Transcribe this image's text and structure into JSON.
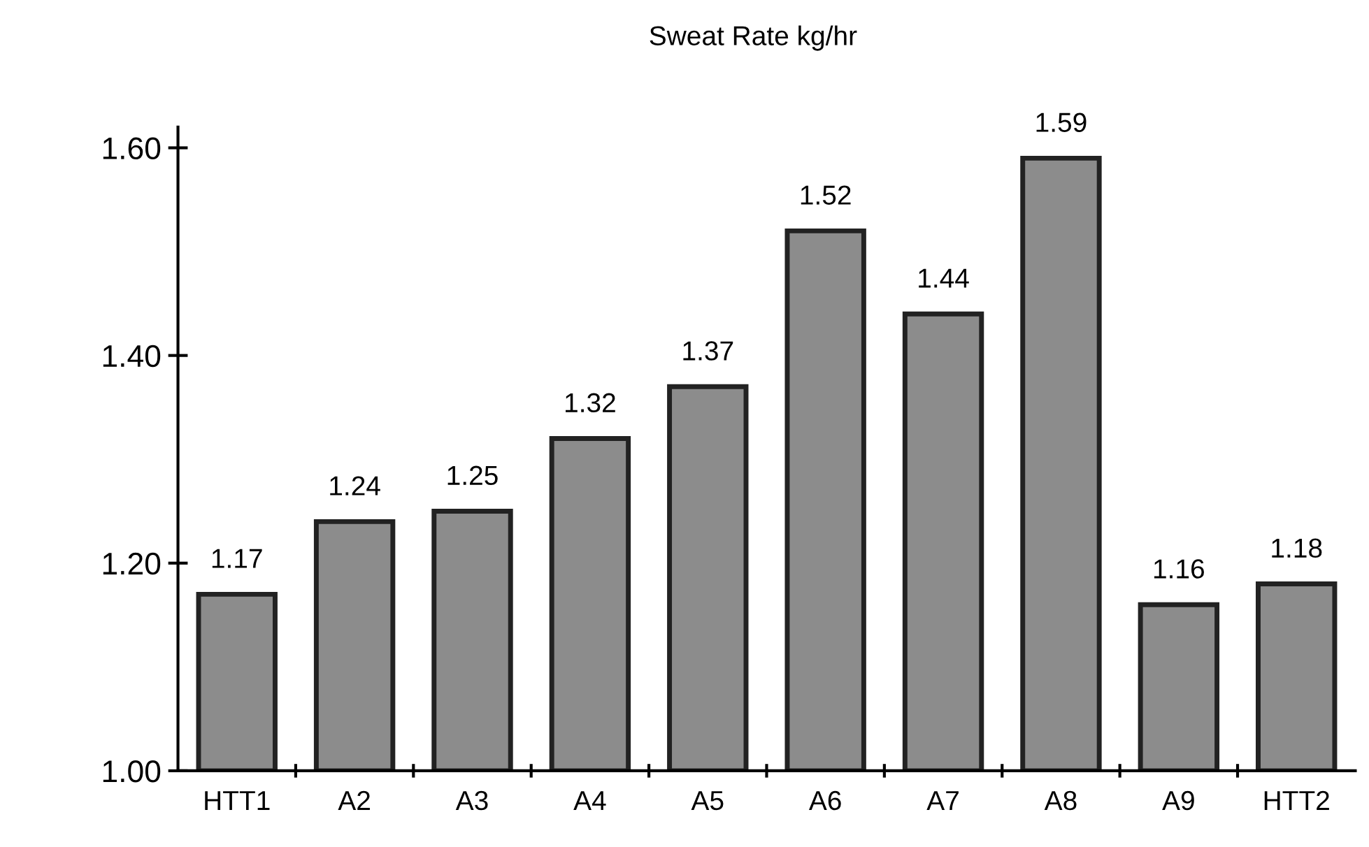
{
  "chart_data": {
    "type": "bar",
    "title": "Sweat Rate kg/hr",
    "categories": [
      "HTT1",
      "A2",
      "A3",
      "A4",
      "A5",
      "A6",
      "A7",
      "A8",
      "A9",
      "HTT2"
    ],
    "values": [
      1.17,
      1.24,
      1.25,
      1.32,
      1.37,
      1.52,
      1.44,
      1.59,
      1.16,
      1.18
    ],
    "color": "#8c8c8c",
    "ylim": [
      1.0,
      1.62
    ],
    "yticks": [
      {
        "value": 1.0,
        "label": "1.00"
      },
      {
        "value": 1.2,
        "label": "1.20"
      },
      {
        "value": 1.4,
        "label": "1.40"
      },
      {
        "value": 1.6,
        "label": "1.60"
      }
    ],
    "data_labels": true,
    "grid": false,
    "legend": false
  }
}
